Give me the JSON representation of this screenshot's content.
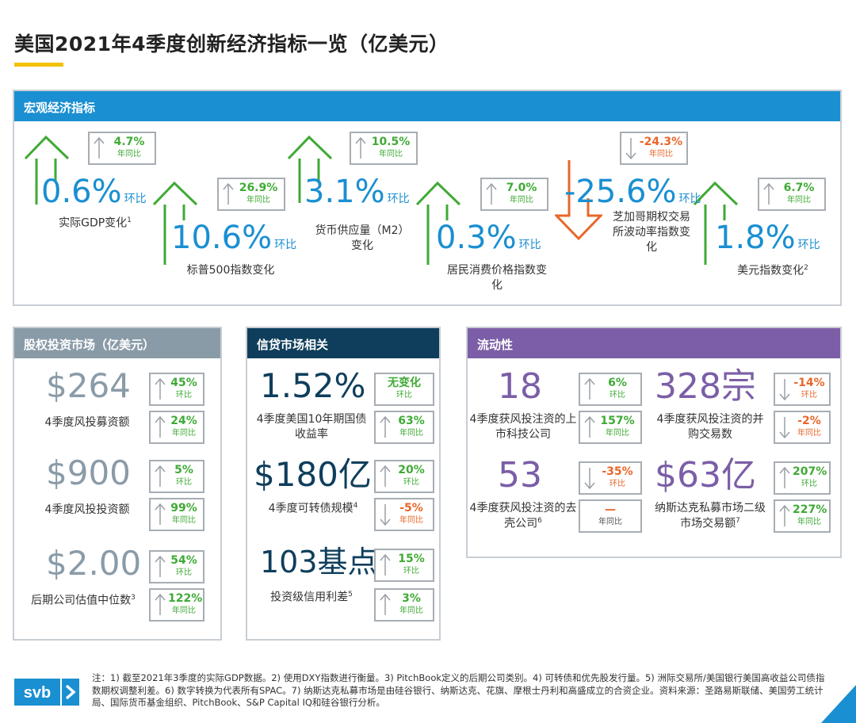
{
  "title": "美国2021年4季度创新经济指标一览（亿美元）",
  "colors": {
    "accent_yellow": "#f2c200",
    "macro_head": "#1a8fd1",
    "equity_head": "#8a9ba8",
    "credit_head": "#0f3e5c",
    "liquidity_head": "#7b5ea7",
    "up_green": "#3faa35",
    "down_orange": "#e8672a"
  },
  "macro": {
    "header": "宏观经济指标",
    "hb": "环比",
    "items": [
      {
        "value": "0.6%",
        "label": "实际GDP变化",
        "sup": "1",
        "yoy": "4.7%",
        "yoy_label": "年同比",
        "dir": "up"
      },
      {
        "value": "10.6%",
        "label": "标普500指数变化",
        "sup": "",
        "yoy": "26.9%",
        "yoy_label": "年同比",
        "dir": "up"
      },
      {
        "value": "3.1%",
        "label": "货币供应量（M2）变化",
        "sup": "",
        "yoy": "10.5%",
        "yoy_label": "年同比",
        "dir": "up"
      },
      {
        "value": "0.3%",
        "label": "居民消费价格指数变化",
        "sup": "",
        "yoy": "7.0%",
        "yoy_label": "年同比",
        "dir": "up"
      },
      {
        "value": "-25.6%",
        "label": "芝加哥期权交易所波动率指数变化",
        "sup": "",
        "yoy": "-24.3%",
        "yoy_label": "年同比",
        "dir": "down"
      },
      {
        "value": "1.8%",
        "label": "美元指数变化",
        "sup": "2",
        "yoy": "6.7%",
        "yoy_label": "年同比",
        "dir": "up"
      }
    ]
  },
  "equity": {
    "header": "股权投资市场（亿美元）",
    "items": [
      {
        "value": "$264",
        "label": "4季度风投募资额",
        "sup": "",
        "qoq": "45%",
        "qoq_label": "环比",
        "yoy": "24%",
        "yoy_label": "年同比"
      },
      {
        "value": "$900",
        "label": "4季度风投投资额",
        "sup": "",
        "qoq": "5%",
        "qoq_label": "环比",
        "yoy": "99%",
        "yoy_label": "年同比"
      },
      {
        "value": "$2.00",
        "label": "后期公司估值中位数",
        "sup": "3",
        "qoq": "54%",
        "qoq_label": "环比",
        "yoy": "122%",
        "yoy_label": "年同比"
      }
    ]
  },
  "credit": {
    "header": "信贷市场相关",
    "items": [
      {
        "value": "1.52%",
        "label": "4季度美国10年期国债收益率",
        "sup": "",
        "qoq": "无变化",
        "qoq_label": "环比",
        "qoq_dir": "flat",
        "yoy": "63%",
        "yoy_label": "年同比",
        "yoy_dir": "up"
      },
      {
        "value": "$180亿",
        "label": "4季度可转债规模",
        "sup": "4",
        "qoq": "20%",
        "qoq_label": "环比",
        "qoq_dir": "up",
        "yoy": "-5%",
        "yoy_label": "年同比",
        "yoy_dir": "down"
      },
      {
        "value": "103基点",
        "label": "投资级信用利差",
        "sup": "5",
        "qoq": "15%",
        "qoq_label": "环比",
        "qoq_dir": "up",
        "yoy": "3%",
        "yoy_label": "年同比",
        "yoy_dir": "up"
      }
    ]
  },
  "liquidity": {
    "header": "流动性",
    "items": [
      {
        "value": "18",
        "label": "4季度获风投注资的上市科技公司",
        "sup": "",
        "qoq": "6%",
        "qoq_label": "环比",
        "qoq_dir": "up",
        "yoy": "157%",
        "yoy_label": "年同比",
        "yoy_dir": "up"
      },
      {
        "value": "328宗",
        "label": "4季度获风投注资的并购交易数",
        "sup": "",
        "qoq": "-14%",
        "qoq_label": "环比",
        "qoq_dir": "down",
        "yoy": "-2%",
        "yoy_label": "年同比",
        "yoy_dir": "down"
      },
      {
        "value": "53",
        "label": "4季度获风投注资的去壳公司",
        "sup": "6",
        "qoq": "-35%",
        "qoq_label": "环比",
        "qoq_dir": "down",
        "yoy": "—",
        "yoy_label": "年同比",
        "yoy_dir": "none"
      },
      {
        "value": "$63亿",
        "label": "纳斯达克私募市场二级市场交易额",
        "sup": "7",
        "qoq": "207%",
        "qoq_label": "环比",
        "qoq_dir": "up",
        "yoy": "227%",
        "yoy_label": "年同比",
        "yoy_dir": "up"
      }
    ]
  },
  "footnote": "注：1) 截至2021年3季度的实际GDP数据。2) 使用DXY指数进行衡量。3) PitchBook定义的后期公司类别。4) 可转债和优先股发行量。5) 洲际交易所/美国银行美国高收益公司债指数期权调整利差。6) 数字转换为代表所有SPAC。7) 纳斯达克私募市场是由硅谷银行、纳斯达克、花旗、摩根士丹利和高盛成立的合资企业。资料来源：圣路易斯联储、美国劳工统计局、国际货币基金组织、PitchBook、S&P Capital IQ和硅谷银行分析。",
  "logo": {
    "text": "svb",
    "icon": "chevron-right-icon"
  }
}
